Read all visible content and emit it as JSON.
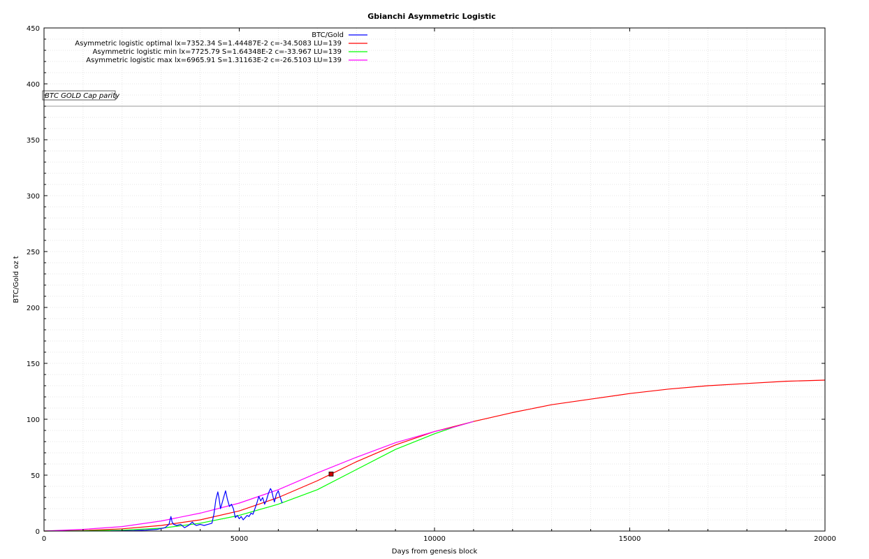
{
  "chart_data": {
    "type": "line",
    "title": "Gbianchi Asymmetric Logistic",
    "xlabel": "Days from genesis block",
    "ylabel": "BTC/Gold oz t",
    "xlim": [
      0,
      20000
    ],
    "ylim": [
      0,
      450
    ],
    "x_ticks": [
      0,
      5000,
      10000,
      15000,
      20000
    ],
    "y_ticks": [
      0,
      50,
      100,
      150,
      200,
      250,
      300,
      350,
      400,
      450
    ],
    "grid": true,
    "legend_position": "top-center",
    "annotation": {
      "label": "BTC GOLD Cap parity",
      "y": 380
    },
    "marker": {
      "x": 7352,
      "y": 51,
      "color": "#cc0000"
    },
    "series": [
      {
        "name": "BTC/Gold",
        "color": "#0000ff",
        "x": [
          1700,
          2000,
          2300,
          2600,
          2900,
          3100,
          3200,
          3250,
          3280,
          3320,
          3400,
          3500,
          3600,
          3700,
          3800,
          3850,
          3900,
          4000,
          4100,
          4200,
          4300,
          4350,
          4400,
          4450,
          4480,
          4520,
          4560,
          4600,
          4650,
          4700,
          4750,
          4800,
          4850,
          4900,
          4950,
          5000,
          5050,
          5100,
          5150,
          5200,
          5250,
          5300,
          5350,
          5400,
          5450,
          5500,
          5550,
          5600,
          5650,
          5700,
          5750,
          5800,
          5830,
          5870,
          5900,
          5950,
          6000,
          6050,
          6080,
          6100
        ],
        "values": [
          0.1,
          0.2,
          0.4,
          0.8,
          1.5,
          3,
          6,
          13,
          8,
          6,
          5,
          6,
          3,
          5,
          8,
          6,
          5,
          6,
          5,
          6,
          7,
          15,
          28,
          35,
          30,
          20,
          25,
          30,
          36,
          28,
          22,
          24,
          20,
          12,
          14,
          11,
          13,
          10,
          12,
          14,
          13,
          16,
          15,
          20,
          25,
          31,
          27,
          30,
          24,
          28,
          34,
          38,
          36,
          30,
          26,
          33,
          36,
          30,
          27,
          25
        ]
      },
      {
        "name": "Asymmetric logistic optimal lx=7352.34 S=1.44487E-2 c=-34.5083 LU=139",
        "color": "#ff0000",
        "x": [
          0,
          1000,
          2000,
          3000,
          4000,
          5000,
          6000,
          7000,
          7352,
          8000,
          9000,
          10000,
          11000,
          12000,
          13000,
          14000,
          15000,
          16000,
          17000,
          18000,
          19000,
          20000
        ],
        "values": [
          0,
          0.5,
          2,
          5,
          10,
          18,
          30,
          45,
          51,
          62,
          77,
          89,
          98,
          106,
          113,
          118,
          123,
          127,
          130,
          132,
          134,
          135
        ]
      },
      {
        "name": "Asymmetric logistic min lx=7725.79 S=1.64348E-2 c=-33.967 LU=139",
        "color": "#00ff00",
        "x": [
          0,
          1000,
          2000,
          3000,
          4000,
          5000,
          6000,
          7000,
          8000,
          9000,
          10000,
          10500,
          11000
        ],
        "values": [
          0,
          0.2,
          0.8,
          2.5,
          7,
          14,
          24,
          37,
          55,
          73,
          87,
          93,
          98
        ]
      },
      {
        "name": "Asymmetric logistic max lx=6965.91 S=1.31163E-2 c=-26.5103 LU=139",
        "color": "#ff00ff",
        "x": [
          0,
          1000,
          2000,
          3000,
          4000,
          5000,
          6000,
          7000,
          8000,
          9000,
          10000,
          10500,
          11000
        ],
        "values": [
          0,
          1.5,
          4,
          9,
          16,
          25,
          37,
          52,
          66,
          79,
          89,
          93,
          98
        ]
      }
    ]
  }
}
